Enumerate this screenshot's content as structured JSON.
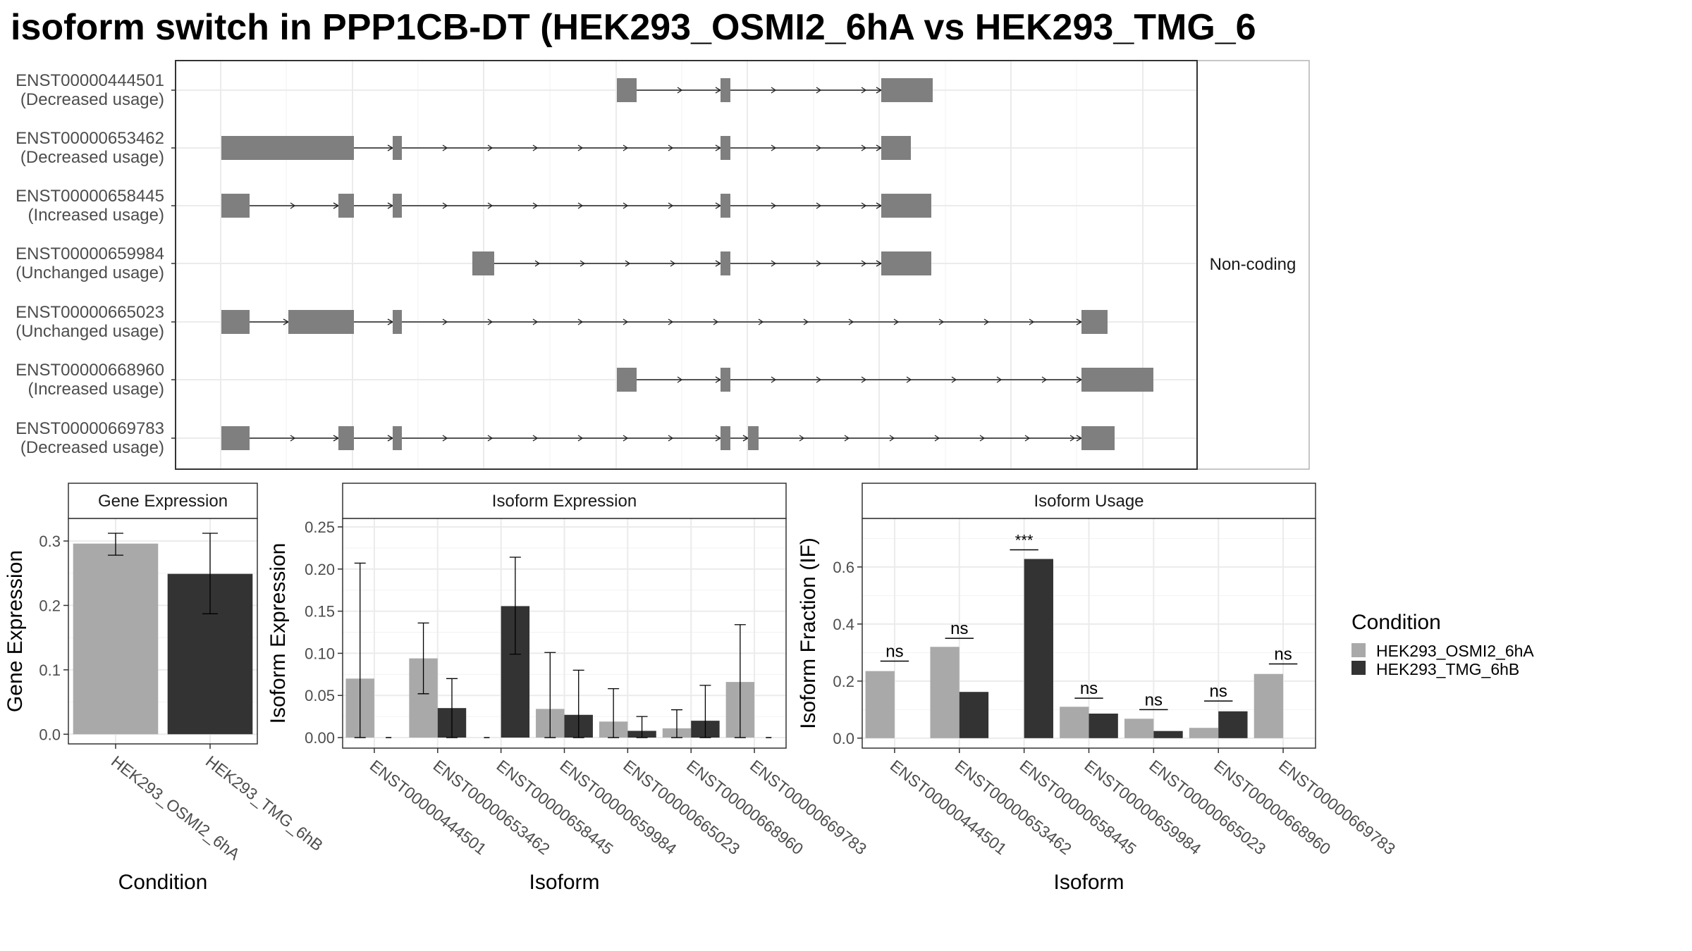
{
  "title": "isoform switch in PPP1CB-DT (HEK293_OSMI2_6hA vs HEK293_TMG_6",
  "colors": {
    "cond1": "#a9a9a9",
    "cond2": "#333333",
    "exon": "#7f7f7f"
  },
  "structure": {
    "strip": "Non-coding",
    "transcripts": [
      {
        "id": "ENST00000444501",
        "usage": "(Decreased usage)"
      },
      {
        "id": "ENST00000653462",
        "usage": "(Decreased usage)"
      },
      {
        "id": "ENST00000658445",
        "usage": "(Increased usage)"
      },
      {
        "id": "ENST00000659984",
        "usage": "(Unchanged usage)"
      },
      {
        "id": "ENST00000665023",
        "usage": "(Unchanged usage)"
      },
      {
        "id": "ENST00000668960",
        "usage": "(Increased usage)"
      },
      {
        "id": "ENST00000669783",
        "usage": "(Decreased usage)"
      }
    ]
  },
  "chart_data": [
    {
      "type": "bar",
      "panel": "gene",
      "strip": "Gene Expression",
      "xlabel": "Condition",
      "ylabel": "Gene Expression",
      "ylim": [
        -0.015,
        0.335
      ],
      "yticks": [
        "0.0",
        "0.1",
        "0.2",
        "0.3"
      ],
      "ytick_values": [
        0,
        0.1,
        0.2,
        0.3
      ],
      "categories": [
        "HEK293_OSMI2_6hA",
        "HEK293_TMG_6hB"
      ],
      "values": [
        0.296,
        0.249
      ],
      "err_low": [
        0.278,
        0.187
      ],
      "err_high": [
        0.312,
        0.312
      ],
      "colors": [
        "#a9a9a9",
        "#333333"
      ]
    },
    {
      "type": "bar",
      "panel": "isoform_expression",
      "strip": "Isoform Expression",
      "xlabel": "Isoform",
      "ylabel": "Isoform Expression",
      "ylim": [
        -0.0125,
        0.26
      ],
      "yticks": [
        "0.00",
        "0.05",
        "0.10",
        "0.15",
        "0.20",
        "0.25"
      ],
      "ytick_values": [
        0,
        0.05,
        0.1,
        0.15,
        0.2,
        0.25
      ],
      "categories": [
        "ENST00000444501",
        "ENST00000653462",
        "ENST00000658445",
        "ENST00000659984",
        "ENST00000665023",
        "ENST00000668960",
        "ENST00000669783"
      ],
      "series": [
        {
          "name": "HEK293_OSMI2_6hA",
          "values": [
            0.07,
            0.094,
            0.0,
            0.034,
            0.019,
            0.011,
            0.066
          ],
          "err_low": [
            0.0,
            0.052,
            0.0,
            0.0,
            0.0,
            0.0,
            0.0
          ],
          "err_high": [
            0.207,
            0.136,
            0.0,
            0.101,
            0.058,
            0.033,
            0.134
          ]
        },
        {
          "name": "HEK293_TMG_6hB",
          "values": [
            0.0,
            0.035,
            0.156,
            0.027,
            0.008,
            0.02,
            0.0
          ],
          "err_low": [
            0.0,
            0.0,
            0.099,
            0.0,
            0.0,
            0.0,
            0.0
          ],
          "err_high": [
            0.0,
            0.07,
            0.214,
            0.08,
            0.025,
            0.062,
            0.0
          ]
        }
      ]
    },
    {
      "type": "bar",
      "panel": "isoform_usage",
      "strip": "Isoform Usage",
      "xlabel": "Isoform",
      "ylabel": "Isoform Fraction (IF)",
      "ylim": [
        -0.035,
        0.77
      ],
      "yticks": [
        "0.0",
        "0.2",
        "0.4",
        "0.6"
      ],
      "ytick_values": [
        0,
        0.2,
        0.4,
        0.6
      ],
      "categories": [
        "ENST00000444501",
        "ENST00000653462",
        "ENST00000658445",
        "ENST00000659984",
        "ENST00000665023",
        "ENST00000668960",
        "ENST00000669783"
      ],
      "series": [
        {
          "name": "HEK293_OSMI2_6hA",
          "values": [
            0.235,
            0.32,
            0.0,
            0.11,
            0.068,
            0.036,
            0.225
          ]
        },
        {
          "name": "HEK293_TMG_6hB",
          "values": [
            0.0,
            0.162,
            0.628,
            0.086,
            0.025,
            0.094,
            0.0
          ]
        }
      ],
      "annotations": [
        {
          "label": "ns",
          "category": 0,
          "y": 0.27
        },
        {
          "label": "ns",
          "category": 1,
          "y": 0.35
        },
        {
          "label": "***",
          "category": 2,
          "y": 0.66
        },
        {
          "label": "ns",
          "category": 3,
          "y": 0.14
        },
        {
          "label": "ns",
          "category": 4,
          "y": 0.1
        },
        {
          "label": "ns",
          "category": 5,
          "y": 0.13
        },
        {
          "label": "ns",
          "category": 6,
          "y": 0.26
        }
      ]
    }
  ],
  "legend": {
    "title": "Condition",
    "items": [
      "HEK293_OSMI2_6hA",
      "HEK293_TMG_6hB"
    ]
  }
}
